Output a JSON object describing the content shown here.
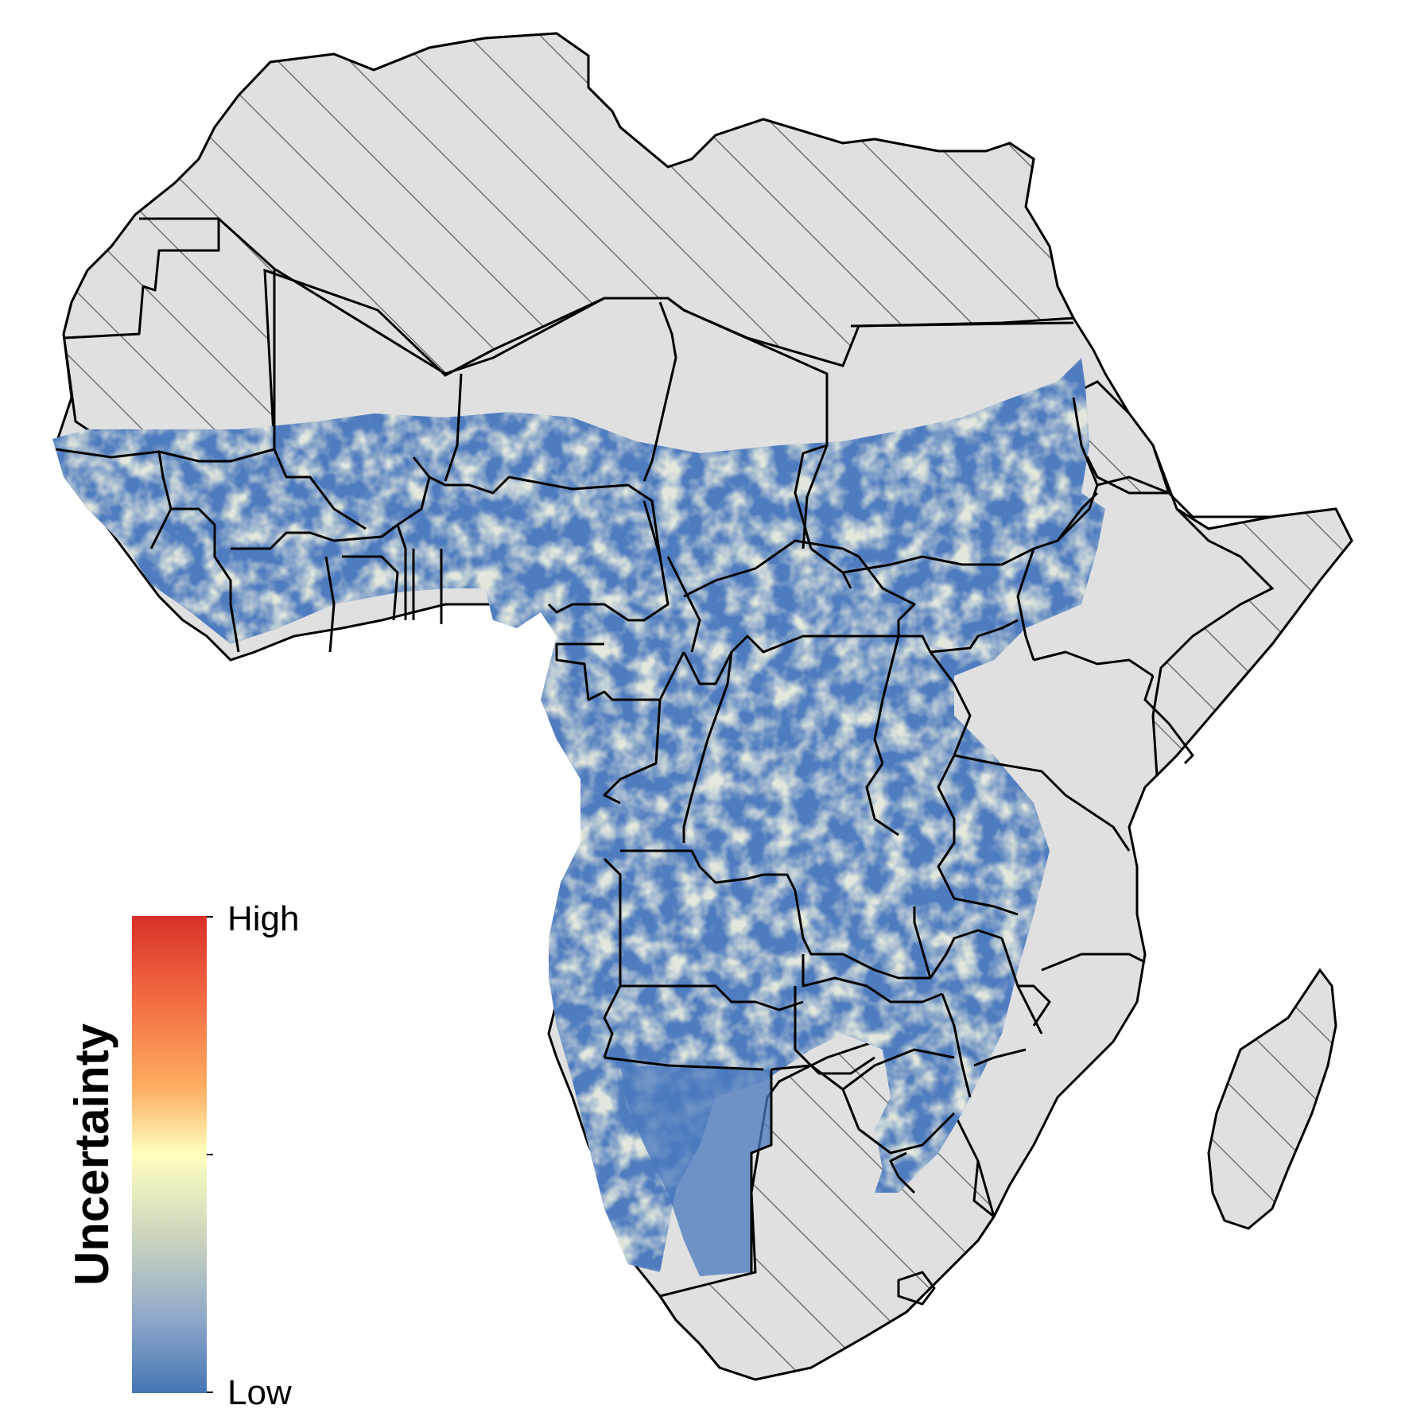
{
  "legend": {
    "title": "Uncertainty",
    "high_label": "High",
    "low_label": "Low",
    "gradient_colors": [
      "#d73027",
      "#f46d43",
      "#fdae61",
      "#fee090",
      "#ffffbf",
      "#c9d3bd",
      "#91a9c9",
      "#4575b4"
    ]
  },
  "colors": {
    "excluded_fill": "#e0e0e0",
    "hatch": "#707070",
    "border": "#000000",
    "low": "#4f7cbf",
    "mid": "#fbf6c3"
  }
}
